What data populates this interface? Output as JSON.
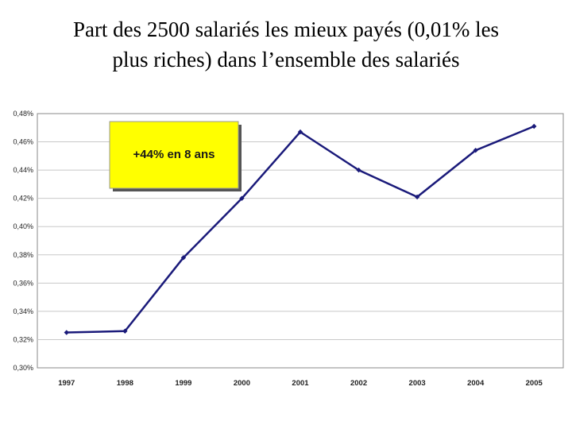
{
  "title_line1": "Part des 2500 salariés les mieux payés (0,01% les",
  "title_line2": "plus riches) dans l’ensemble des salariés",
  "chart_data": {
    "type": "line",
    "title": "Part des 2500 salariés les mieux payés (0,01% les plus riches) dans l’ensemble des salariés",
    "xlabel": "",
    "ylabel": "",
    "categories": [
      "1997",
      "1998",
      "1999",
      "2000",
      "2001",
      "2002",
      "2003",
      "2004",
      "2005"
    ],
    "series": [
      {
        "values": [
          0.325,
          0.326,
          0.378,
          0.42,
          0.467,
          0.44,
          0.421,
          0.454,
          0.471
        ]
      }
    ],
    "ylim": [
      0.3,
      0.48
    ],
    "yticks": [
      0.3,
      0.32,
      0.34,
      0.36,
      0.38,
      0.4,
      0.42,
      0.44,
      0.46,
      0.48
    ],
    "ytick_labels": [
      "0,30%",
      "0,32%",
      "0,34%",
      "0,36%",
      "0,38%",
      "0,40%",
      "0,42%",
      "0,44%",
      "0,46%",
      "0,48%"
    ],
    "grid": true,
    "line_color": "#1a1a7a",
    "annotation": {
      "text": "+44% en 8 ans",
      "background": "#ffff00"
    }
  }
}
